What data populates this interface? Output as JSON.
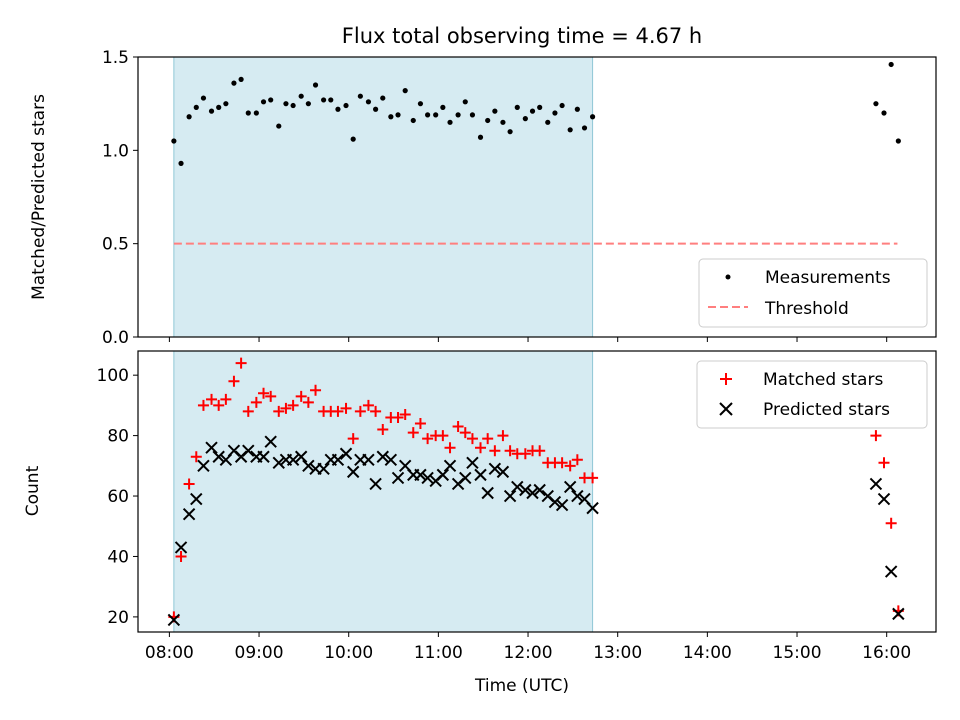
{
  "chart_data": [
    {
      "type": "scatter",
      "title": "Flux total observing time = 4.67 h",
      "ylabel": "Matched/Predicted stars",
      "xlabel": "",
      "xlim": [
        7.65,
        16.55
      ],
      "ylim": [
        0,
        1.5
      ],
      "yticks": [
        "0.0",
        "0.5",
        "1.0",
        "1.5"
      ],
      "shaded_span": [
        8.05,
        12.72
      ],
      "threshold": {
        "name": "Threshold",
        "value": 0.5,
        "x_range": [
          8.05,
          16.12
        ],
        "color": "#ff7f7f"
      },
      "legend": {
        "location": "lower-right",
        "entries": [
          "Measurements",
          "Threshold"
        ]
      },
      "series": [
        {
          "name": "Measurements",
          "marker": "dot",
          "color": "#000000",
          "x": [
            8.05,
            8.13,
            8.22,
            8.3,
            8.38,
            8.47,
            8.55,
            8.63,
            8.72,
            8.8,
            8.88,
            8.97,
            9.05,
            9.13,
            9.22,
            9.3,
            9.38,
            9.47,
            9.55,
            9.63,
            9.72,
            9.8,
            9.88,
            9.97,
            10.05,
            10.13,
            10.22,
            10.3,
            10.38,
            10.47,
            10.55,
            10.63,
            10.72,
            10.8,
            10.88,
            10.97,
            11.05,
            11.13,
            11.22,
            11.3,
            11.38,
            11.47,
            11.55,
            11.63,
            11.72,
            11.8,
            11.88,
            11.97,
            12.05,
            12.13,
            12.22,
            12.3,
            12.38,
            12.47,
            12.55,
            12.63,
            12.72,
            15.88,
            15.97,
            16.05,
            16.13
          ],
          "y": [
            1.05,
            0.93,
            1.18,
            1.23,
            1.28,
            1.21,
            1.23,
            1.25,
            1.36,
            1.38,
            1.2,
            1.2,
            1.26,
            1.27,
            1.13,
            1.25,
            1.24,
            1.29,
            1.25,
            1.35,
            1.27,
            1.27,
            1.22,
            1.24,
            1.06,
            1.29,
            1.26,
            1.22,
            1.28,
            1.18,
            1.19,
            1.32,
            1.16,
            1.25,
            1.19,
            1.19,
            1.23,
            1.15,
            1.19,
            1.26,
            1.19,
            1.07,
            1.16,
            1.21,
            1.15,
            1.1,
            1.23,
            1.17,
            1.21,
            1.23,
            1.15,
            1.2,
            1.24,
            1.11,
            1.22,
            1.12,
            1.18,
            1.25,
            1.2,
            1.46,
            1.05
          ]
        }
      ]
    },
    {
      "type": "scatter",
      "title": "",
      "ylabel": "Count",
      "xlabel": "Time (UTC)",
      "xlim": [
        7.65,
        16.55
      ],
      "ylim": [
        15,
        108
      ],
      "yticks": [
        "20",
        "40",
        "60",
        "80",
        "100"
      ],
      "xticks": [
        "08:00",
        "09:00",
        "10:00",
        "11:00",
        "12:00",
        "13:00",
        "14:00",
        "15:00",
        "16:00"
      ],
      "shaded_span": [
        8.05,
        12.72
      ],
      "legend": {
        "location": "top-right",
        "entries": [
          "Matched stars",
          "Predicted stars"
        ]
      },
      "series": [
        {
          "name": "Matched stars",
          "marker": "plus",
          "color": "#ff0000",
          "x": [
            8.05,
            8.13,
            8.22,
            8.3,
            8.38,
            8.47,
            8.55,
            8.63,
            8.72,
            8.8,
            8.88,
            8.97,
            9.05,
            9.13,
            9.22,
            9.3,
            9.38,
            9.47,
            9.55,
            9.63,
            9.72,
            9.8,
            9.88,
            9.97,
            10.05,
            10.13,
            10.22,
            10.3,
            10.38,
            10.47,
            10.55,
            10.63,
            10.72,
            10.8,
            10.88,
            10.97,
            11.05,
            11.13,
            11.22,
            11.3,
            11.38,
            11.47,
            11.55,
            11.63,
            11.72,
            11.8,
            11.88,
            11.97,
            12.05,
            12.13,
            12.22,
            12.3,
            12.38,
            12.47,
            12.55,
            12.63,
            12.72,
            15.88,
            15.97,
            16.05,
            16.13
          ],
          "y": [
            20,
            40,
            64,
            73,
            90,
            92,
            90,
            92,
            98,
            104,
            88,
            91,
            94,
            93,
            88,
            89,
            90,
            93,
            91,
            95,
            88,
            88,
            88,
            89,
            79,
            88,
            90,
            88,
            82,
            86,
            86,
            87,
            81,
            84,
            79,
            80,
            80,
            76,
            83,
            81,
            79,
            76,
            79,
            75,
            80,
            75,
            74,
            74,
            75,
            75,
            71,
            71,
            71,
            70,
            72,
            66,
            66,
            80,
            71,
            51,
            22
          ]
        },
        {
          "name": "Predicted stars",
          "marker": "x",
          "color": "#000000",
          "x": [
            8.05,
            8.13,
            8.22,
            8.3,
            8.38,
            8.47,
            8.55,
            8.63,
            8.72,
            8.8,
            8.88,
            8.97,
            9.05,
            9.13,
            9.22,
            9.3,
            9.38,
            9.47,
            9.55,
            9.63,
            9.72,
            9.8,
            9.88,
            9.97,
            10.05,
            10.13,
            10.22,
            10.3,
            10.38,
            10.47,
            10.55,
            10.63,
            10.72,
            10.8,
            10.88,
            10.97,
            11.05,
            11.13,
            11.22,
            11.3,
            11.38,
            11.47,
            11.55,
            11.63,
            11.72,
            11.8,
            11.88,
            11.97,
            12.05,
            12.13,
            12.22,
            12.3,
            12.38,
            12.47,
            12.55,
            12.63,
            12.72,
            15.88,
            15.97,
            16.05,
            16.13
          ],
          "y": [
            19,
            43,
            54,
            59,
            70,
            76,
            73,
            72,
            75,
            73,
            75,
            73,
            73,
            78,
            71,
            72,
            72,
            73,
            70,
            69,
            69,
            72,
            72,
            74,
            68,
            72,
            72,
            64,
            73,
            72,
            66,
            70,
            67,
            67,
            66,
            65,
            67,
            70,
            64,
            66,
            71,
            67,
            61,
            69,
            68,
            60,
            63,
            62,
            61,
            62,
            60,
            58,
            57,
            63,
            60,
            59,
            56,
            64,
            59,
            35,
            21
          ]
        }
      ]
    }
  ]
}
